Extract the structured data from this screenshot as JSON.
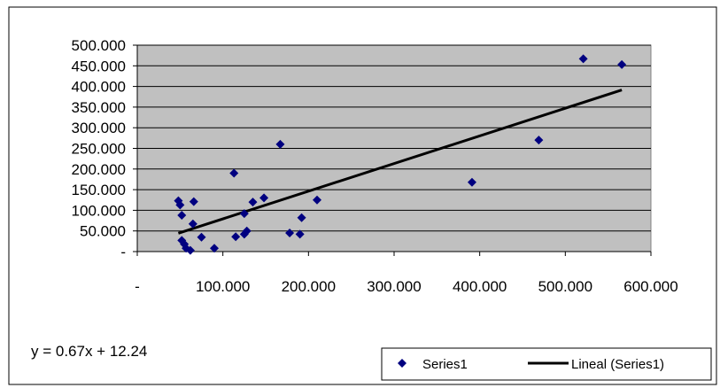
{
  "chart_data": {
    "type": "scatter",
    "title": "",
    "xlabel": "",
    "ylabel": "",
    "xlim": [
      0,
      600000
    ],
    "ylim": [
      0,
      500000
    ],
    "x_ticks": [
      {
        "value": 0,
        "label": "-"
      },
      {
        "value": 100000,
        "label": "100.000"
      },
      {
        "value": 200000,
        "label": "200.000"
      },
      {
        "value": 300000,
        "label": "300.000"
      },
      {
        "value": 400000,
        "label": "400.000"
      },
      {
        "value": 500000,
        "label": "500.000"
      },
      {
        "value": 600000,
        "label": "600.000"
      }
    ],
    "y_ticks": [
      {
        "value": 0,
        "label": "-"
      },
      {
        "value": 50000,
        "label": "50.000"
      },
      {
        "value": 100000,
        "label": "100.000"
      },
      {
        "value": 150000,
        "label": "150.000"
      },
      {
        "value": 200000,
        "label": "200.000"
      },
      {
        "value": 250000,
        "label": "250.000"
      },
      {
        "value": 300000,
        "label": "300.000"
      },
      {
        "value": 350000,
        "label": "350.000"
      },
      {
        "value": 400000,
        "label": "400.000"
      },
      {
        "value": 450000,
        "label": "450.000"
      },
      {
        "value": 500000,
        "label": "500.000"
      }
    ],
    "grid": {
      "horizontal": true,
      "vertical": false
    },
    "plot_background": "#c0c0c0",
    "series": [
      {
        "name": "Series1",
        "marker": "diamond",
        "color": "#000080",
        "points": [
          {
            "x": 48000,
            "y": 123000
          },
          {
            "x": 50000,
            "y": 113000
          },
          {
            "x": 52000,
            "y": 88000
          },
          {
            "x": 52000,
            "y": 27000
          },
          {
            "x": 55000,
            "y": 18000
          },
          {
            "x": 57000,
            "y": 8000
          },
          {
            "x": 62000,
            "y": 3000
          },
          {
            "x": 66000,
            "y": 121000
          },
          {
            "x": 65000,
            "y": 67000
          },
          {
            "x": 75000,
            "y": 35000
          },
          {
            "x": 90000,
            "y": 8000
          },
          {
            "x": 113000,
            "y": 190000
          },
          {
            "x": 115000,
            "y": 36000
          },
          {
            "x": 125000,
            "y": 42000
          },
          {
            "x": 125000,
            "y": 92000
          },
          {
            "x": 128000,
            "y": 50000
          },
          {
            "x": 135000,
            "y": 120000
          },
          {
            "x": 148000,
            "y": 130000
          },
          {
            "x": 167000,
            "y": 260000
          },
          {
            "x": 178000,
            "y": 45000
          },
          {
            "x": 190000,
            "y": 42000
          },
          {
            "x": 192000,
            "y": 82000
          },
          {
            "x": 210000,
            "y": 125000
          },
          {
            "x": 391000,
            "y": 168000
          },
          {
            "x": 469000,
            "y": 270000
          },
          {
            "x": 521000,
            "y": 467000
          },
          {
            "x": 566000,
            "y": 453000
          }
        ]
      },
      {
        "name": "Lineal (Series1)",
        "type": "trendline",
        "color": "#000000",
        "x_range": [
          48000,
          566000
        ],
        "slope": 0.67,
        "intercept": 12240
      }
    ],
    "trendline_equation": "y = 0.67x + 12.24",
    "legend": {
      "position": "bottom-right",
      "entries": [
        {
          "label": "Series1",
          "symbol": "diamond",
          "color": "#000080"
        },
        {
          "label": "Lineal (Series1)",
          "symbol": "line",
          "color": "#000000"
        }
      ]
    }
  }
}
